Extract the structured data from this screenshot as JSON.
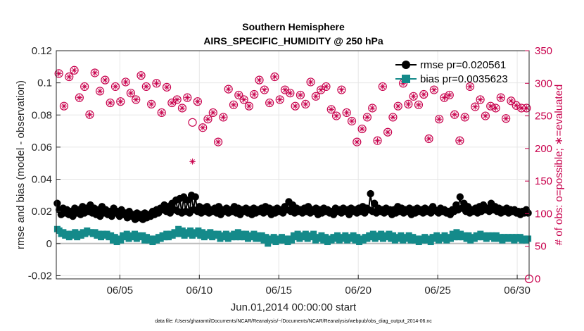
{
  "chart_data": {
    "type": "line",
    "title": "Southern Hemisphere",
    "subtitle": "AIRS_SPECIFIC_HUMIDITY @ 250 hPa",
    "xlabel": "Jun.01,2014 00:00:00 start",
    "ylabel": "rmse and bias (model - observation)",
    "ylabel_right": "# of obs: o=possible; ∗=evaluated",
    "footnote": "data file: /Users/gharamti/Documents/NCAR/Reanalysis/~/Documents/NCAR/Reanalysis/webpub/obs_diag_output_2014-06.nc",
    "x_range": [
      1,
      30.75
    ],
    "x_ticks": [
      5,
      10,
      15,
      20,
      25,
      30
    ],
    "x_tick_labels": [
      "06/05",
      "06/10",
      "06/15",
      "06/20",
      "06/25",
      "06/30"
    ],
    "ylim": [
      -0.022,
      0.12
    ],
    "y_ticks": [
      -0.02,
      0,
      0.02,
      0.04,
      0.06,
      0.08,
      0.1,
      0.12
    ],
    "y_tick_labels": [
      "-0.02",
      "0",
      "0.02",
      "0.04",
      "0.06",
      "0.08",
      "0.1",
      "0.12"
    ],
    "ylim_right": [
      0,
      350
    ],
    "y_ticks_right": [
      0,
      50,
      100,
      150,
      200,
      250,
      300,
      350
    ],
    "grid": true,
    "legend_position": "top-right",
    "series": [
      {
        "name": "rmse pr=0.020561",
        "marker": "circle",
        "color": "#000000",
        "axis": "left",
        "values": [
          0.025,
          0.021,
          0.018,
          0.022,
          0.019,
          0.021,
          0.018,
          0.02,
          0.017,
          0.022,
          0.019,
          0.021,
          0.018,
          0.023,
          0.019,
          0.022,
          0.02,
          0.024,
          0.019,
          0.022,
          0.018,
          0.021,
          0.017,
          0.023,
          0.019,
          0.021,
          0.018,
          0.02,
          0.017,
          0.022,
          0.019,
          0.02,
          0.017,
          0.021,
          0.018,
          0.019,
          0.016,
          0.02,
          0.017,
          0.018,
          0.015,
          0.019,
          0.016,
          0.018,
          0.015,
          0.019,
          0.016,
          0.018,
          0.017,
          0.02,
          0.018,
          0.021,
          0.019,
          0.022,
          0.021,
          0.024,
          0.02,
          0.023,
          0.019,
          0.025,
          0.021,
          0.027,
          0.02,
          0.028,
          0.019,
          0.029,
          0.02,
          0.027,
          0.019,
          0.03,
          0.021,
          0.029,
          0.02,
          0.023,
          0.019,
          0.022,
          0.02,
          0.023,
          0.019,
          0.021,
          0.02,
          0.022,
          0.019,
          0.023,
          0.018,
          0.021,
          0.02,
          0.022,
          0.019,
          0.021,
          0.02,
          0.023,
          0.019,
          0.022,
          0.018,
          0.021,
          0.02,
          0.022,
          0.019,
          0.021,
          0.018,
          0.022,
          0.019,
          0.021,
          0.02,
          0.022,
          0.019,
          0.023,
          0.02,
          0.022,
          0.018,
          0.021,
          0.019,
          0.022,
          0.02,
          0.021,
          0.019,
          0.023,
          0.021,
          0.026,
          0.02,
          0.024,
          0.019,
          0.022,
          0.02,
          0.021,
          0.019,
          0.022,
          0.02,
          0.023,
          0.019,
          0.021,
          0.02,
          0.022,
          0.018,
          0.021,
          0.019,
          0.022,
          0.02,
          0.021,
          0.019,
          0.02,
          0.018,
          0.022,
          0.02,
          0.021,
          0.019,
          0.022,
          0.02,
          0.021,
          0.018,
          0.022,
          0.02,
          0.021,
          0.019,
          0.022,
          0.02,
          0.023,
          0.019,
          0.022,
          0.021,
          0.031,
          0.02,
          0.025,
          0.019,
          0.022,
          0.02,
          0.021,
          0.019,
          0.022,
          0.02,
          0.021,
          0.018,
          0.021,
          0.019,
          0.023,
          0.02,
          0.022,
          0.019,
          0.021,
          0.02,
          0.022,
          0.018,
          0.021,
          0.019,
          0.022,
          0.02,
          0.021,
          0.019,
          0.022,
          0.02,
          0.021,
          0.019,
          0.023,
          0.021,
          0.02,
          0.019,
          0.022,
          0.02,
          0.021,
          0.019,
          0.02,
          0.018,
          0.021,
          0.02,
          0.024,
          0.021,
          0.029,
          0.022,
          0.025,
          0.02,
          0.023,
          0.019,
          0.021,
          0.02,
          0.022,
          0.019,
          0.023,
          0.02,
          0.024,
          0.021,
          0.022,
          0.02,
          0.025,
          0.021,
          0.023,
          0.02,
          0.022,
          0.019,
          0.021,
          0.02,
          0.022,
          0.019,
          0.021,
          0.02,
          0.021,
          0.019,
          0.02,
          0.018,
          0.02,
          0.019,
          0.021,
          0.019
        ]
      },
      {
        "name": "bias pr=0.0035623",
        "marker": "square",
        "color": "#148a8a",
        "axis": "left",
        "values": [
          0.009,
          0.008,
          0.006,
          0.007,
          0.005,
          0.006,
          0.004,
          0.006,
          0.005,
          0.007,
          0.004,
          0.006,
          0.005,
          0.007,
          0.006,
          0.008,
          0.007,
          0.007,
          0.006,
          0.007,
          0.005,
          0.006,
          0.004,
          0.006,
          0.005,
          0.006,
          0.004,
          0.005,
          0.002,
          0.004,
          0.001,
          0.003,
          0.002,
          0.005,
          0.004,
          0.006,
          0.003,
          0.005,
          0.004,
          0.006,
          0.003,
          0.005,
          0.004,
          0.005,
          0.002,
          0.004,
          0.002,
          0.003,
          0.001,
          0.003,
          0.002,
          0.004,
          0.003,
          0.005,
          0.004,
          0.006,
          0.004,
          0.006,
          0.005,
          0.007,
          0.006,
          0.009,
          0.006,
          0.008,
          0.005,
          0.007,
          0.006,
          0.008,
          0.005,
          0.007,
          0.006,
          0.008,
          0.005,
          0.007,
          0.004,
          0.006,
          0.005,
          0.007,
          0.004,
          0.006,
          0.005,
          0.006,
          0.003,
          0.005,
          0.004,
          0.006,
          0.003,
          0.005,
          0.004,
          0.006,
          0.004,
          0.007,
          0.004,
          0.006,
          0.004,
          0.006,
          0.003,
          0.005,
          0.004,
          0.006,
          0.003,
          0.005,
          0.003,
          0.005,
          0.002,
          0.004,
          0.0,
          0.003,
          0.002,
          0.004,
          0.001,
          0.003,
          0.002,
          0.004,
          0.002,
          0.003,
          0.001,
          0.003,
          0.002,
          0.005,
          0.004,
          0.006,
          0.003,
          0.005,
          0.004,
          0.006,
          0.003,
          0.005,
          0.004,
          0.006,
          0.002,
          0.004,
          0.003,
          0.005,
          0.002,
          0.004,
          0.001,
          0.003,
          0.002,
          0.004,
          0.003,
          0.005,
          0.002,
          0.004,
          0.003,
          0.005,
          0.002,
          0.004,
          0.003,
          0.005,
          0.002,
          0.004,
          0.001,
          0.003,
          0.002,
          0.004,
          0.003,
          0.005,
          0.004,
          0.006,
          0.003,
          0.005,
          0.004,
          0.006,
          0.003,
          0.005,
          0.004,
          0.006,
          0.003,
          0.005,
          0.002,
          0.004,
          0.003,
          0.005,
          0.002,
          0.004,
          0.003,
          0.005,
          0.002,
          0.004,
          0.002,
          0.003,
          0.001,
          0.003,
          0.002,
          0.004,
          0.002,
          0.003,
          0.001,
          0.004,
          0.003,
          0.005,
          0.002,
          0.004,
          0.003,
          0.005,
          0.002,
          0.004,
          0.003,
          0.006,
          0.004,
          0.007,
          0.004,
          0.006,
          0.004,
          0.005,
          0.003,
          0.005,
          0.002,
          0.004,
          0.003,
          0.005,
          0.004,
          0.006,
          0.004,
          0.005,
          0.003,
          0.005,
          0.004,
          0.005,
          0.003,
          0.005,
          0.003,
          0.004,
          0.002,
          0.004,
          0.003,
          0.004,
          0.003,
          0.004,
          0.002,
          0.004,
          0.003,
          0.004,
          0.002,
          0.003,
          0.002,
          0.003
        ]
      },
      {
        "name": "possible",
        "marker": "open-circle",
        "color": "#c8004c",
        "axis": "right",
        "values": [
          315,
          265,
          310,
          320,
          278,
          295,
          252,
          316,
          288,
          305,
          270,
          295,
          272,
          302,
          285,
          275,
          312,
          295,
          268,
          300,
          255,
          294,
          270,
          275,
          262,
          278,
          240,
          272,
          232,
          245,
          255,
          210,
          248,
          291,
          267,
          282,
          275,
          265,
          283,
          305,
          290,
          270,
          310,
          275,
          290,
          285,
          265,
          282,
          268,
          302,
          280,
          290,
          295,
          260,
          250,
          290,
          255,
          242,
          210,
          230,
          248,
          262,
          212,
          295,
          225,
          248,
          265,
          300,
          268,
          280,
          267,
          283,
          215,
          290,
          245,
          278,
          282,
          252,
          212,
          248,
          295,
          264,
          275,
          250,
          265,
          262,
          278,
          246,
          273,
          266,
          262,
          262
        ]
      },
      {
        "name": "evaluated",
        "marker": "star",
        "color": "#c8004c",
        "axis": "right",
        "values": [
          315,
          265,
          310,
          320,
          278,
          295,
          252,
          316,
          288,
          305,
          270,
          295,
          272,
          302,
          285,
          275,
          312,
          295,
          268,
          300,
          255,
          294,
          270,
          275,
          262,
          278,
          180,
          272,
          232,
          245,
          255,
          210,
          248,
          291,
          267,
          282,
          275,
          265,
          283,
          305,
          290,
          270,
          310,
          275,
          290,
          285,
          265,
          282,
          268,
          302,
          280,
          290,
          295,
          260,
          250,
          290,
          255,
          242,
          210,
          230,
          248,
          262,
          212,
          295,
          225,
          248,
          265,
          300,
          268,
          280,
          267,
          283,
          215,
          290,
          245,
          278,
          282,
          252,
          212,
          248,
          295,
          264,
          275,
          250,
          265,
          262,
          278,
          246,
          273,
          266,
          262,
          262
        ]
      }
    ],
    "last_possible_value": 0
  }
}
